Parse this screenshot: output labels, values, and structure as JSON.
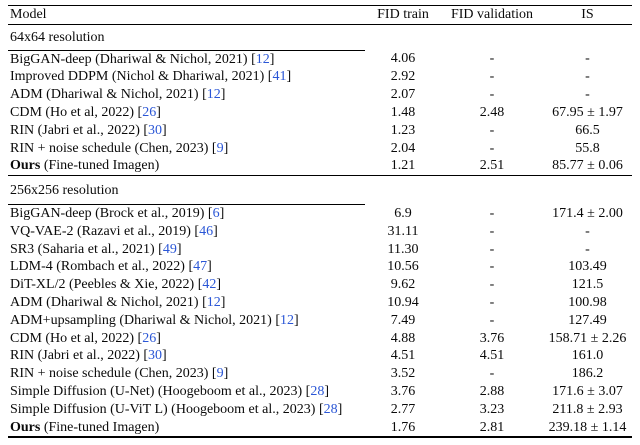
{
  "table": {
    "columns": [
      "Model",
      "FID train",
      "FID validation",
      "IS"
    ],
    "citation_color": "#2a56d6",
    "cite_open": "[",
    "cite_close": "]",
    "sections": [
      {
        "title": "64x64 resolution",
        "rows": [
          {
            "model": "BigGAN-deep (Dhariwal & Nichol, 2021)",
            "cite": "12",
            "fid_train": "4.06",
            "fid_validation": "-",
            "is": "-"
          },
          {
            "model": "Improved DDPM (Nichol & Dhariwal, 2021)",
            "cite": "41",
            "fid_train": "2.92",
            "fid_validation": "-",
            "is": "-"
          },
          {
            "model": "ADM (Dhariwal & Nichol, 2021)",
            "cite": "12",
            "fid_train": "2.07",
            "fid_validation": "-",
            "is": "-"
          },
          {
            "model": "CDM (Ho et al, 2022)",
            "cite": "26",
            "fid_train": "1.48",
            "fid_validation": "2.48",
            "is": "67.95 ± 1.97"
          },
          {
            "model": "RIN (Jabri et al., 2022)",
            "cite": "30",
            "fid_train": "1.23",
            "fid_validation": "-",
            "is": "66.5"
          },
          {
            "model": "RIN + noise schedule (Chen, 2023)",
            "cite": "9",
            "fid_train": "2.04",
            "fid_validation": "-",
            "is": "55.8"
          },
          {
            "model_bold": "Ours",
            "model": " (Fine-tuned Imagen)",
            "cite": "",
            "fid_train": "1.21",
            "fid_validation": "2.51",
            "is": "85.77 ± 0.06"
          }
        ]
      },
      {
        "title": "256x256 resolution",
        "rows": [
          {
            "model": "BigGAN-deep (Brock et al., 2019)",
            "cite": "6",
            "fid_train": "6.9",
            "fid_validation": "-",
            "is": "171.4 ± 2.00"
          },
          {
            "model": "VQ-VAE-2 (Razavi et al., 2019)",
            "cite": "46",
            "fid_train": "31.11",
            "fid_validation": "-",
            "is": "-"
          },
          {
            "model": "SR3 (Saharia et al., 2021)",
            "cite": "49",
            "fid_train": "11.30",
            "fid_validation": "-",
            "is": "-"
          },
          {
            "model": "LDM-4 (Rombach et al., 2022)",
            "cite": "47",
            "fid_train": "10.56",
            "fid_validation": "-",
            "is": "103.49"
          },
          {
            "model": "DiT-XL/2 (Peebles & Xie, 2022)",
            "cite": "42",
            "fid_train": "9.62",
            "fid_validation": "-",
            "is": "121.5"
          },
          {
            "model": "ADM (Dhariwal & Nichol, 2021)",
            "cite": "12",
            "fid_train": "10.94",
            "fid_validation": "-",
            "is": "100.98"
          },
          {
            "model": "ADM+upsampling (Dhariwal & Nichol, 2021)",
            "cite": "12",
            "fid_train": "7.49",
            "fid_validation": "-",
            "is": "127.49"
          },
          {
            "model": "CDM (Ho et al, 2022)",
            "cite": "26",
            "fid_train": "4.88",
            "fid_validation": "3.76",
            "is": "158.71 ± 2.26"
          },
          {
            "model": "RIN (Jabri et al., 2022)",
            "cite": "30",
            "fid_train": "4.51",
            "fid_validation": "4.51",
            "is": "161.0"
          },
          {
            "model": "RIN + noise schedule (Chen, 2023)",
            "cite": "9",
            "fid_train": "3.52",
            "fid_validation": "-",
            "is": "186.2"
          },
          {
            "model": "Simple Diffusion (U-Net) (Hoogeboom et al., 2023)",
            "cite": "28",
            "fid_train": "3.76",
            "fid_validation": "2.88",
            "is": "171.6 ± 3.07"
          },
          {
            "model": "Simple Diffusion (U-ViT L) (Hoogeboom et al., 2023)",
            "cite": "28",
            "fid_train": "2.77",
            "fid_validation": "3.23",
            "is": "211.8 ± 2.93"
          },
          {
            "model_bold": "Ours",
            "model": " (Fine-tuned Imagen)",
            "cite": "",
            "fid_train": "1.76",
            "fid_validation": "2.81",
            "is": "239.18 ± 1.14"
          }
        ]
      }
    ]
  }
}
